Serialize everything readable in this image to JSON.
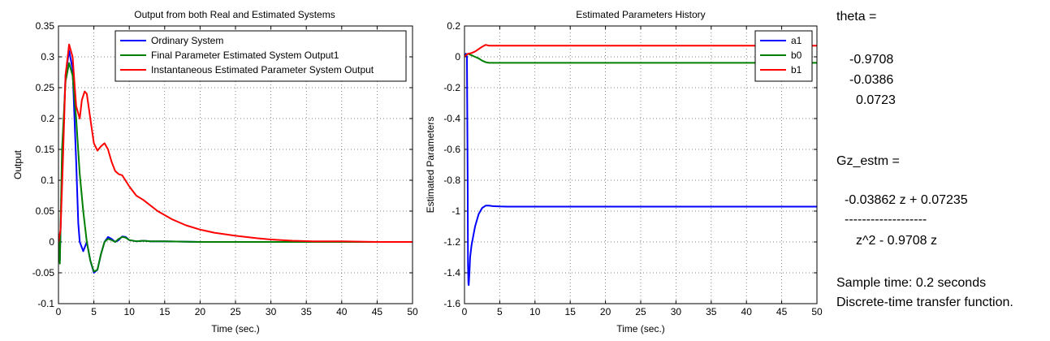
{
  "chart_data": [
    {
      "type": "line",
      "title": "Output from both Real and Estimated Systems",
      "xlabel": "Time (sec.)",
      "ylabel": "Output",
      "xlim": [
        0,
        50
      ],
      "ylim": [
        -0.1,
        0.35
      ],
      "xticks": [
        "0",
        "5",
        "10",
        "15",
        "20",
        "25",
        "30",
        "35",
        "40",
        "45",
        "50"
      ],
      "yticks": [
        "-0.1",
        "-0.05",
        "0",
        "0.05",
        "0.1",
        "0.15",
        "0.2",
        "0.25",
        "0.3",
        "0.35"
      ],
      "grid": true,
      "legend_position": "top-right",
      "series": [
        {
          "name": "Ordinary System",
          "color": "#0000ff",
          "x": [
            0,
            0.2,
            0.5,
            1,
            1.5,
            2,
            2.5,
            2.8,
            3,
            3.5,
            4,
            4.5,
            5,
            5.5,
            6,
            6.5,
            7,
            7.5,
            8,
            8.5,
            9,
            9.5,
            10,
            11,
            12,
            13,
            15,
            20,
            30,
            40,
            50
          ],
          "y": [
            0,
            -0.03,
            0.12,
            0.27,
            0.31,
            0.28,
            0.13,
            0.03,
            0.0,
            -0.015,
            0.0,
            -0.03,
            -0.05,
            -0.045,
            -0.02,
            0.0,
            0.008,
            0.005,
            0.0,
            0.003,
            0.009,
            0.008,
            0.003,
            0.001,
            0.002,
            0.001,
            0.001,
            0,
            0,
            0,
            0
          ]
        },
        {
          "name": "Final Parameter Estimated System Output1",
          "color": "#008000",
          "x": [
            0,
            0.2,
            0.5,
            1,
            1.5,
            2,
            2.5,
            3,
            3.5,
            4,
            4.5,
            5,
            5.5,
            6,
            6.5,
            7,
            7.5,
            8,
            8.5,
            9,
            9.5,
            10,
            11,
            12,
            13,
            15,
            20,
            30,
            40,
            50
          ],
          "y": [
            0,
            -0.035,
            0.15,
            0.26,
            0.29,
            0.27,
            0.2,
            0.11,
            0.05,
            0.0,
            -0.03,
            -0.048,
            -0.045,
            -0.02,
            0.0,
            0.005,
            0.003,
            0.0,
            0.005,
            0.008,
            0.007,
            0.003,
            0.001,
            0.002,
            0.001,
            0.001,
            0,
            0,
            0,
            0
          ]
        },
        {
          "name": "Instantaneous Estimated Parameter System Output",
          "color": "#ff0000",
          "x": [
            0,
            0.3,
            0.6,
            1,
            1.5,
            2,
            2.5,
            3,
            3.3,
            3.7,
            4,
            4.5,
            5,
            5.5,
            6,
            6.5,
            7,
            7.5,
            8,
            8.5,
            9,
            10,
            11,
            12,
            14,
            16,
            18,
            20,
            22,
            25,
            28,
            30,
            33,
            36,
            40,
            45,
            50
          ],
          "y": [
            0,
            0.02,
            0.12,
            0.27,
            0.32,
            0.3,
            0.22,
            0.2,
            0.23,
            0.244,
            0.24,
            0.2,
            0.16,
            0.148,
            0.155,
            0.16,
            0.15,
            0.13,
            0.115,
            0.11,
            0.108,
            0.09,
            0.075,
            0.068,
            0.05,
            0.037,
            0.027,
            0.02,
            0.015,
            0.01,
            0.006,
            0.004,
            0.002,
            0.001,
            0.001,
            0,
            0
          ]
        }
      ]
    },
    {
      "type": "line",
      "title": "Estimated Parameters History",
      "xlabel": "Time (sec.)",
      "ylabel": "Estimated Parameters",
      "xlim": [
        0,
        50
      ],
      "ylim": [
        -1.6,
        0.2
      ],
      "xticks": [
        "0",
        "5",
        "10",
        "15",
        "20",
        "25",
        "30",
        "35",
        "40",
        "45",
        "50"
      ],
      "yticks": [
        "-1.6",
        "-1.4",
        "-1.2",
        "-1",
        "-0.8",
        "-0.6",
        "-0.4",
        "-0.2",
        "0",
        "0.2"
      ],
      "grid": true,
      "legend_position": "top-right",
      "series": [
        {
          "name": "a1",
          "color": "#0000ff",
          "x": [
            0,
            0.2,
            0.35,
            0.45,
            0.5,
            0.55,
            0.6,
            0.7,
            0.8,
            1,
            1.5,
            2,
            2.5,
            3,
            3.5,
            4,
            5,
            6,
            50
          ],
          "y": [
            0,
            0.02,
            0.0,
            -0.8,
            -1.35,
            -1.47,
            -1.48,
            -1.4,
            -1.3,
            -1.22,
            -1.1,
            -1.02,
            -0.98,
            -0.965,
            -0.965,
            -0.968,
            -0.97,
            -0.971,
            -0.971
          ]
        },
        {
          "name": "b0",
          "color": "#008000",
          "x": [
            0,
            0.2,
            0.5,
            1,
            1.5,
            2,
            2.5,
            3,
            3.5,
            50
          ],
          "y": [
            0,
            0.01,
            0.02,
            0.01,
            0.0,
            -0.01,
            -0.025,
            -0.035,
            -0.039,
            -0.039
          ]
        },
        {
          "name": "b1",
          "color": "#ff0000",
          "x": [
            0,
            0.2,
            0.5,
            1,
            1.5,
            2,
            2.5,
            3,
            3.5,
            50
          ],
          "y": [
            0,
            0.01,
            0.02,
            0.025,
            0.035,
            0.05,
            0.065,
            0.078,
            0.072,
            0.072
          ]
        }
      ]
    }
  ],
  "console": {
    "theta_label": "theta =",
    "theta_values": [
      "-0.9708",
      "-0.0386",
      "0.0723"
    ],
    "gz_label": "Gz_estm =",
    "numerator": "-0.03862 z + 0.07235",
    "fraction_bar": "-------------------",
    "denominator": "z^2 - 0.9708 z",
    "sample_time": "Sample time: 0.2 seconds",
    "description": "Discrete-time transfer function."
  }
}
